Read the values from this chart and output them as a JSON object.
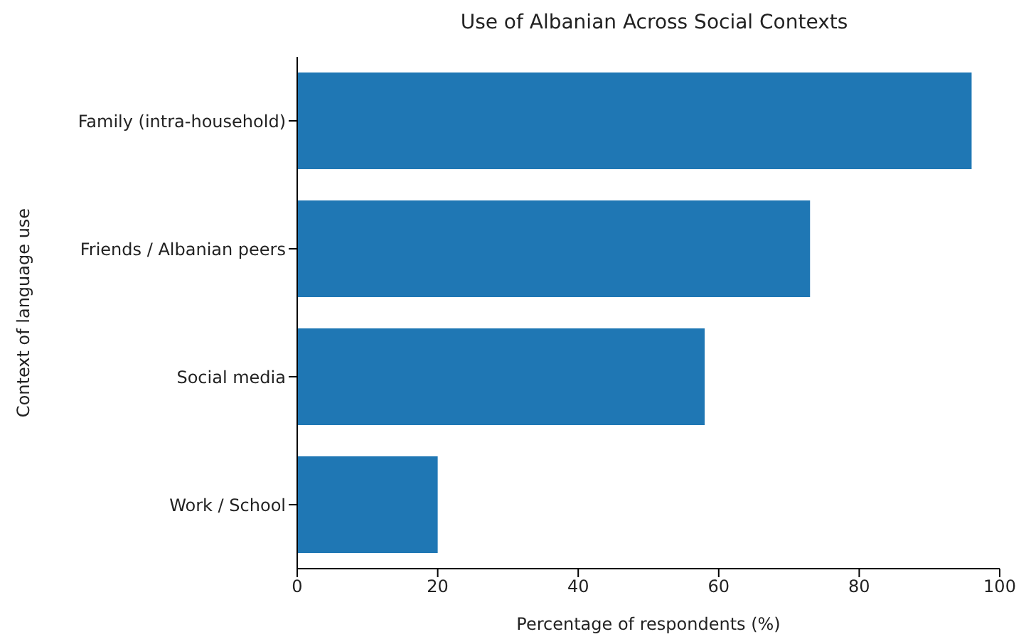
{
  "chart_data": {
    "type": "bar",
    "orientation": "horizontal",
    "title": "Use of Albanian Across Social Contexts",
    "xlabel": "Percentage of respondents (%)",
    "ylabel": "Context of language use",
    "categories": [
      "Family (intra-household)",
      "Friends / Albanian peers",
      "Social media",
      "Work / School"
    ],
    "values": [
      96,
      73,
      58,
      20
    ],
    "color": "#1f77b4",
    "xlim": [
      0,
      100
    ],
    "xticks": [
      0,
      20,
      40,
      60,
      80,
      100
    ],
    "grid": false
  }
}
